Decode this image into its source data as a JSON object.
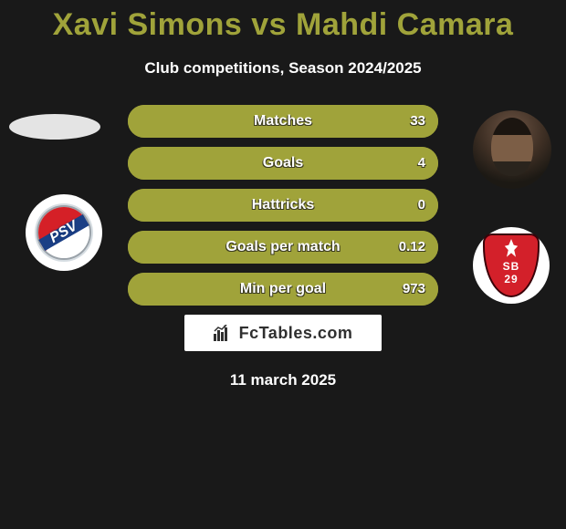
{
  "title": "Xavi Simons vs Mahdi Camara",
  "subtitle": "Club competitions, Season 2024/2025",
  "date": "11 march 2025",
  "site_logo_text": "FcTables.com",
  "colors": {
    "background": "#191919",
    "accent": "#a0a33a",
    "text": "#ffffff"
  },
  "player_left": {
    "name": "Xavi Simons",
    "club_badge_text": "PSV"
  },
  "player_right": {
    "name": "Mahdi Camara",
    "club_badge_top_text": "SB",
    "club_badge_bottom_text": "29"
  },
  "stats": [
    {
      "label": "Matches",
      "left_value": "",
      "right_value": "33",
      "fill_side": "right",
      "fill_pct": 100
    },
    {
      "label": "Goals",
      "left_value": "",
      "right_value": "4",
      "fill_side": "right",
      "fill_pct": 100
    },
    {
      "label": "Hattricks",
      "left_value": "",
      "right_value": "0",
      "fill_side": "right",
      "fill_pct": 100
    },
    {
      "label": "Goals per match",
      "left_value": "",
      "right_value": "0.12",
      "fill_side": "right",
      "fill_pct": 100
    },
    {
      "label": "Min per goal",
      "left_value": "",
      "right_value": "973",
      "fill_side": "right",
      "fill_pct": 100
    }
  ]
}
